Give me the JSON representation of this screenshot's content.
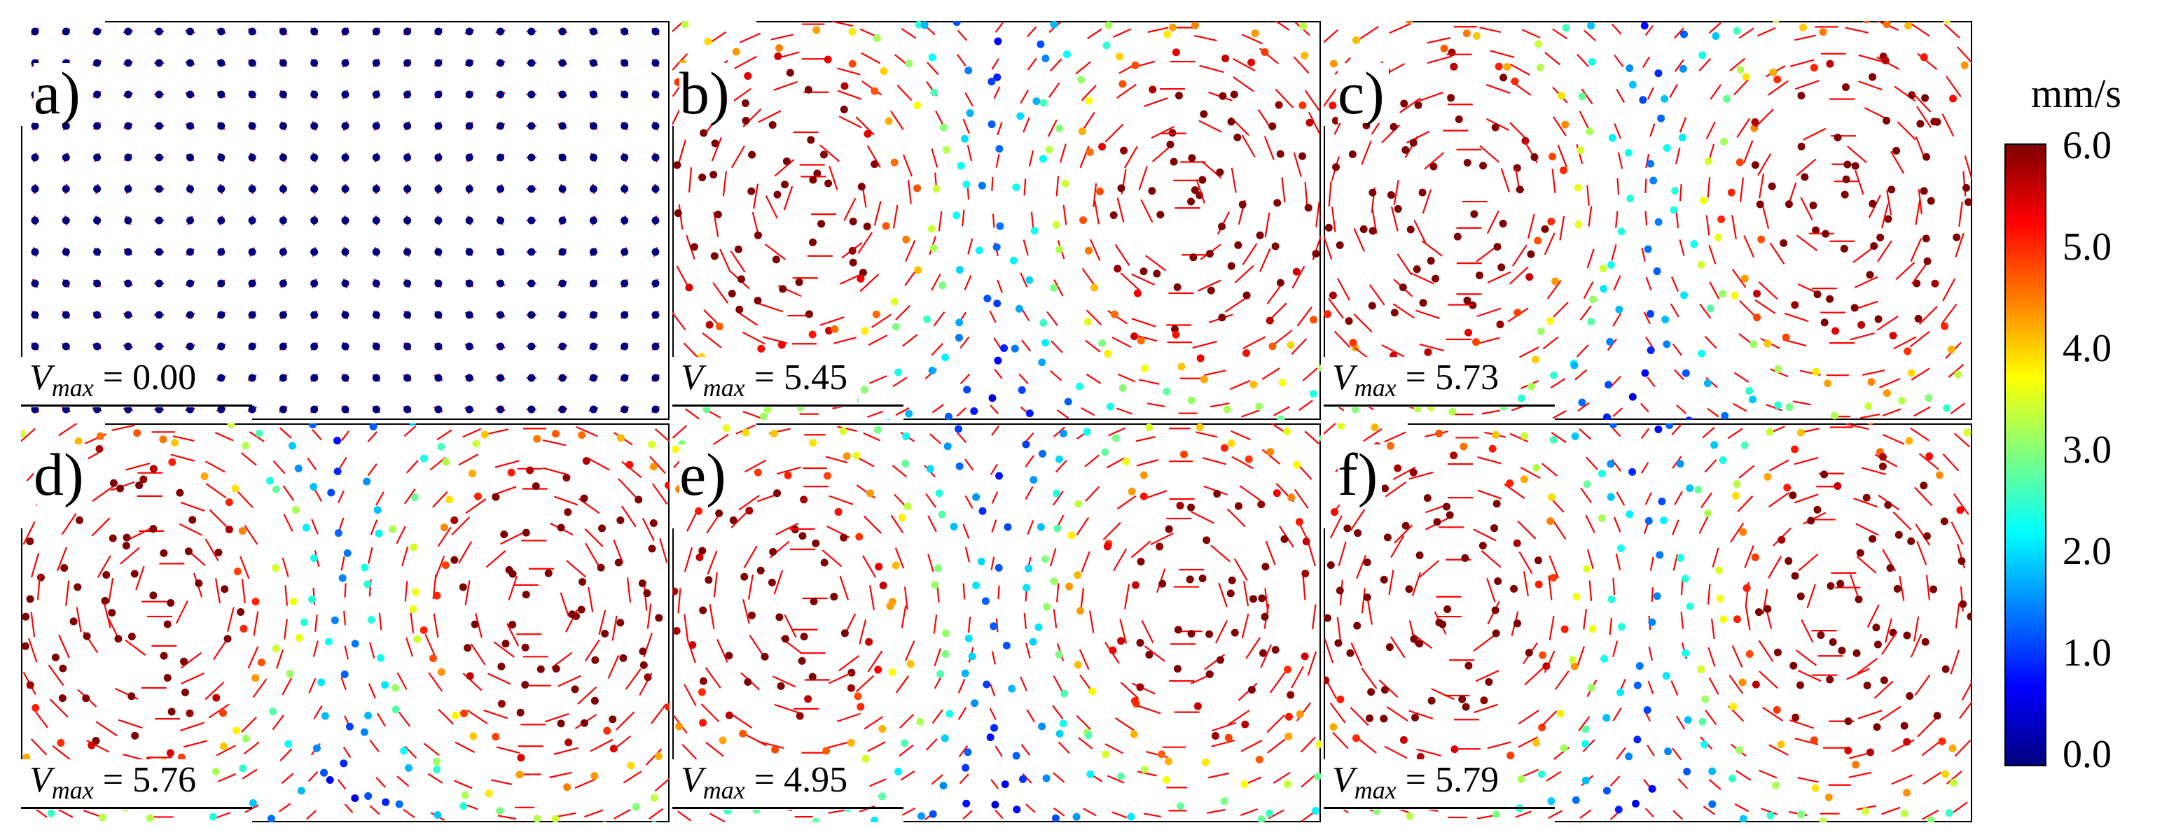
{
  "colorbar": {
    "unit": "mm/s",
    "ticks": [
      "6.0",
      "5.0",
      "4.0",
      "3.0",
      "2.0",
      "1.0",
      "0.0"
    ],
    "range": [
      0.0,
      6.0
    ],
    "colormap": [
      "#00007f",
      "#0000ff",
      "#007fff",
      "#00ffff",
      "#7fff7f",
      "#ffff00",
      "#ff7f00",
      "#ff0000",
      "#7f0000"
    ]
  },
  "arrow_color": "#ff0000",
  "panels": [
    {
      "label": "a)",
      "vmax_var": "V",
      "vmax_sub": "max",
      "vmax_eq": "=",
      "vmax_value": "0.00",
      "vmax": 0.0
    },
    {
      "label": "b)",
      "vmax_var": "V",
      "vmax_sub": "max",
      "vmax_eq": "=",
      "vmax_value": "5.45",
      "vmax": 5.45
    },
    {
      "label": "c)",
      "vmax_var": "V",
      "vmax_sub": "max",
      "vmax_eq": "=",
      "vmax_value": "5.73",
      "vmax": 5.73
    },
    {
      "label": "d)",
      "vmax_var": "V",
      "vmax_sub": "max",
      "vmax_eq": "=",
      "vmax_value": "5.76",
      "vmax": 5.76
    },
    {
      "label": "e)",
      "vmax_var": "V",
      "vmax_sub": "max",
      "vmax_eq": "=",
      "vmax_value": "4.95",
      "vmax": 4.95
    },
    {
      "label": "f)",
      "vmax_var": "V",
      "vmax_sub": "max",
      "vmax_eq": "=",
      "vmax_value": "5.79",
      "vmax": 5.79
    }
  ]
}
